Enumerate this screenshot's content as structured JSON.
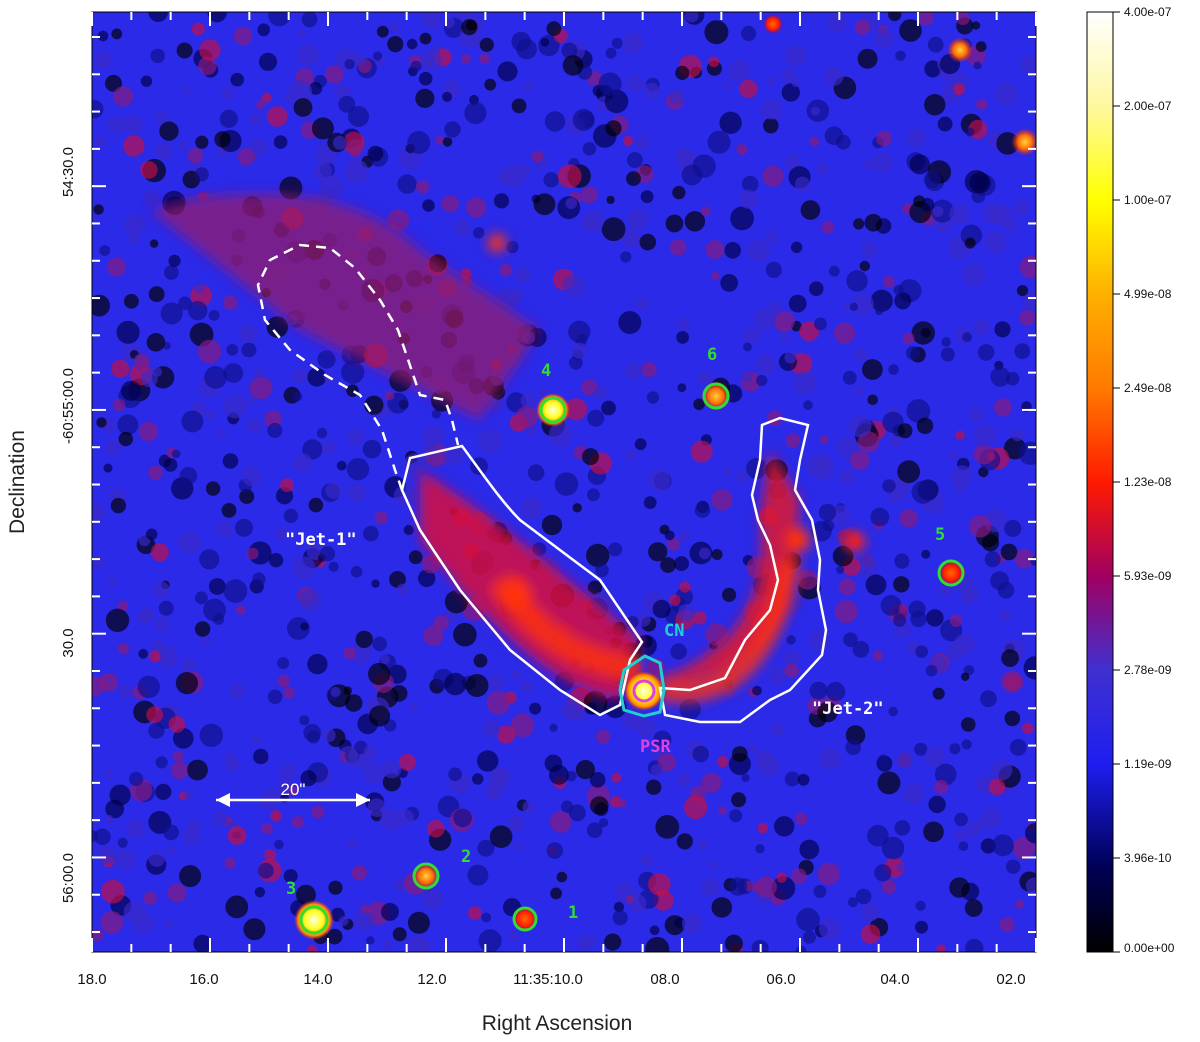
{
  "figure": {
    "xlabel": "Right Ascension",
    "ylabel": "Declination",
    "x_ticks": [
      "18.0",
      "16.0",
      "14.0",
      "12.0",
      "11:35:10.0",
      "08.0",
      "06.0",
      "04.0",
      "02.0"
    ],
    "y_ticks": [
      "54:30.0",
      "-60:55:00.0",
      "30.0",
      "56:00.0"
    ]
  },
  "colorbar": {
    "ticks": [
      "4.00e-07",
      "2.00e-07",
      "1.00e-07",
      "4.99e-08",
      "2.49e-08",
      "1.23e-08",
      "5.93e-09",
      "2.78e-09",
      "1.19e-09",
      "3.96e-10",
      "0.00e+00"
    ],
    "colors": [
      "#ffffff",
      "#fff8a0",
      "#ffff00",
      "#ffb000",
      "#ff7a00",
      "#ff1a00",
      "#a00060",
      "#4030d0",
      "#1e1ef0",
      "#000055",
      "#000000"
    ]
  },
  "annotations": {
    "jet1": "\"Jet-1\"",
    "jet2": "\"Jet-2\"",
    "cn": "CN",
    "psr": "PSR",
    "scale": "20\""
  },
  "sources": [
    {
      "id": "1"
    },
    {
      "id": "2"
    },
    {
      "id": "3"
    },
    {
      "id": "4"
    },
    {
      "id": "5"
    },
    {
      "id": "6"
    }
  ],
  "colors": {
    "jet_outline": "#ffffff",
    "cn_outline": "#20d0d0",
    "psr_marker": "#e040e0",
    "source_marker": "#30dd30",
    "source_label": "#30dd30"
  }
}
